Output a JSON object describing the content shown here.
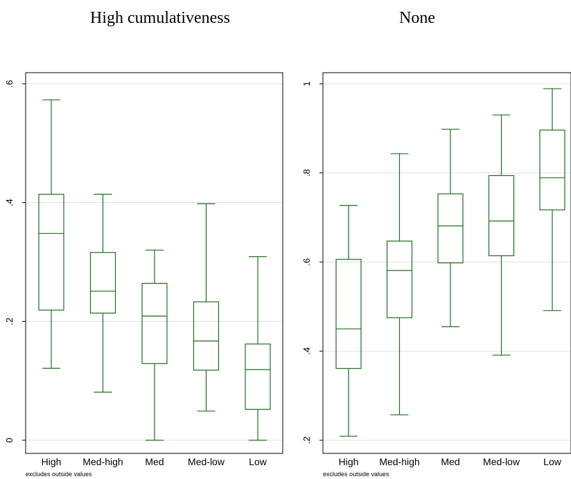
{
  "colors": {
    "box": "#1f6b1f",
    "grid": "#e0e0e0"
  },
  "chart_data": [
    {
      "type": "box",
      "title": "High cumulativeness",
      "note": "excludes outside values",
      "ylim": [
        0,
        0.6
      ],
      "yticks": [
        {
          "v": 0,
          "label": "0"
        },
        {
          "v": 0.2,
          "label": ".2"
        },
        {
          "v": 0.4,
          "label": ".4"
        },
        {
          "v": 0.6,
          "label": ".6"
        }
      ],
      "grid": true,
      "categories": [
        "High",
        "Med-high",
        "Med",
        "Med-low",
        "Low"
      ],
      "boxes": [
        {
          "min": 0.121,
          "q1": 0.219,
          "median": 0.348,
          "q3": 0.414,
          "max": 0.573
        },
        {
          "min": 0.081,
          "q1": 0.214,
          "median": 0.251,
          "q3": 0.316,
          "max": 0.414
        },
        {
          "min": 0.0,
          "q1": 0.129,
          "median": 0.209,
          "q3": 0.264,
          "max": 0.32
        },
        {
          "min": 0.049,
          "q1": 0.118,
          "median": 0.167,
          "q3": 0.233,
          "max": 0.398
        },
        {
          "min": 0.0,
          "q1": 0.052,
          "median": 0.119,
          "q3": 0.162,
          "max": 0.309
        }
      ]
    },
    {
      "type": "box",
      "title": "None",
      "note": "excludes outside values",
      "ylim": [
        0.2,
        1.0
      ],
      "yticks": [
        {
          "v": 0.2,
          "label": ".2"
        },
        {
          "v": 0.4,
          "label": ".4"
        },
        {
          "v": 0.6,
          "label": ".6"
        },
        {
          "v": 0.8,
          "label": ".8"
        },
        {
          "v": 1.0,
          "label": "1"
        }
      ],
      "grid": true,
      "categories": [
        "High",
        "Med-high",
        "Med",
        "Med-low",
        "Low"
      ],
      "boxes": [
        {
          "min": 0.209,
          "q1": 0.361,
          "median": 0.45,
          "q3": 0.606,
          "max": 0.727
        },
        {
          "min": 0.257,
          "q1": 0.475,
          "median": 0.581,
          "q3": 0.647,
          "max": 0.843
        },
        {
          "min": 0.455,
          "q1": 0.598,
          "median": 0.681,
          "q3": 0.753,
          "max": 0.898
        },
        {
          "min": 0.391,
          "q1": 0.614,
          "median": 0.692,
          "q3": 0.794,
          "max": 0.93
        },
        {
          "min": 0.491,
          "q1": 0.717,
          "median": 0.789,
          "q3": 0.896,
          "max": 0.989
        }
      ]
    }
  ]
}
